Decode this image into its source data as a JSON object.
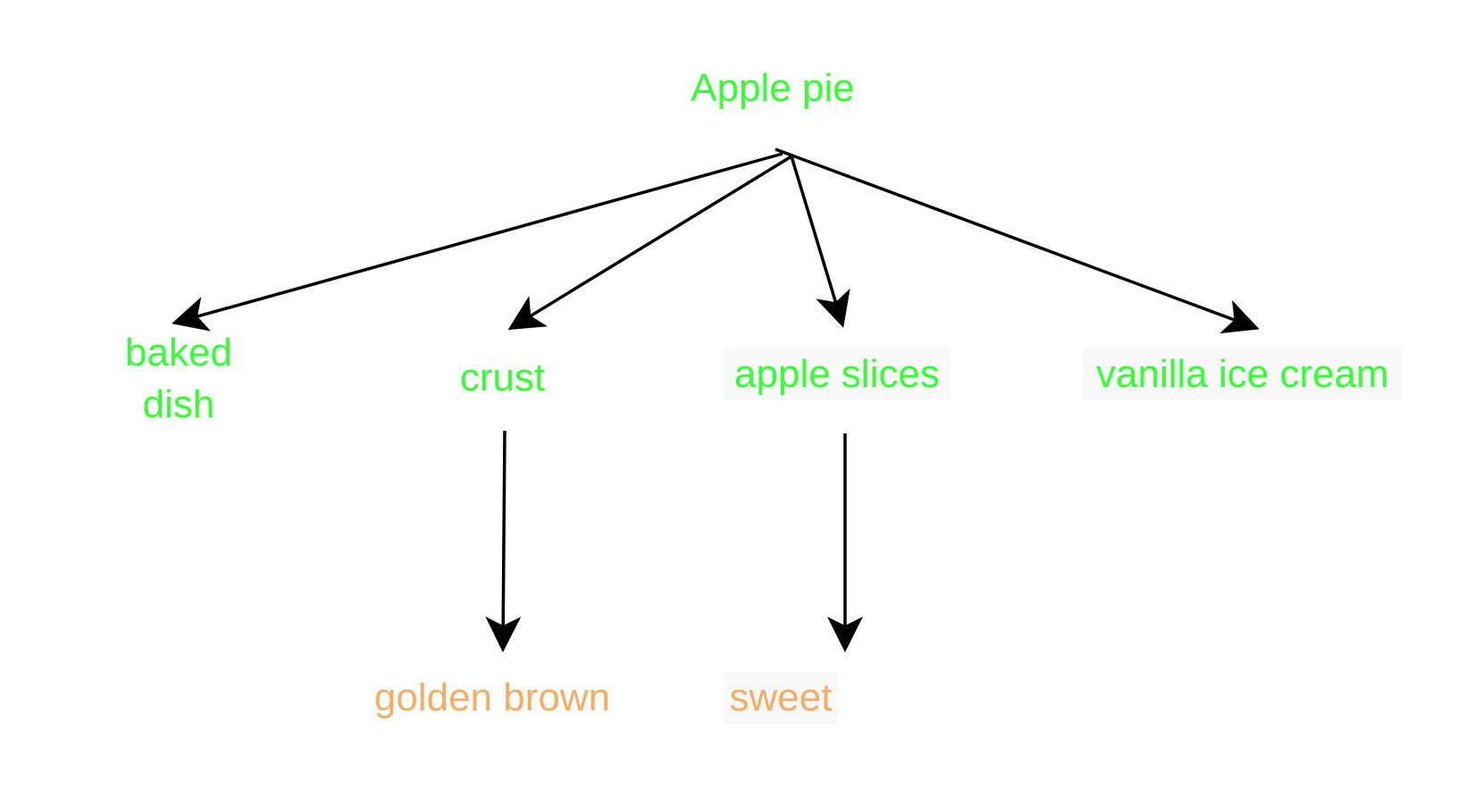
{
  "diagram": {
    "root": {
      "label": "Apple pie"
    },
    "nodes": {
      "baked_dish": "baked dish",
      "crust": "crust",
      "apple_slices": "apple slices",
      "vanilla_ice_cream": "vanilla ice cream",
      "golden_brown": "golden brown",
      "sweet": "sweet"
    },
    "edges": [
      {
        "from": "Apple pie",
        "to": "baked dish"
      },
      {
        "from": "Apple pie",
        "to": "crust"
      },
      {
        "from": "Apple pie",
        "to": "apple slices"
      },
      {
        "from": "Apple pie",
        "to": "vanilla ice cream"
      },
      {
        "from": "crust",
        "to": "golden brown"
      },
      {
        "from": "apple slices",
        "to": "sweet"
      }
    ],
    "colors": {
      "level1_text": "#33ff33",
      "level2_text": "#f5ad66",
      "arrow": "#000000"
    }
  }
}
